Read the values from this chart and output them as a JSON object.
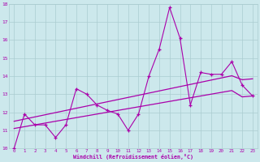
{
  "x": [
    0,
    1,
    2,
    3,
    4,
    5,
    6,
    7,
    8,
    9,
    10,
    11,
    12,
    13,
    14,
    15,
    16,
    17,
    18,
    19,
    20,
    21,
    22,
    23
  ],
  "y_main": [
    10.0,
    11.9,
    11.3,
    11.3,
    10.6,
    11.3,
    13.3,
    13.0,
    12.4,
    12.1,
    11.9,
    11.0,
    11.9,
    14.0,
    15.5,
    17.8,
    16.1,
    12.4,
    14.2,
    14.1,
    14.1,
    14.8,
    13.5,
    12.9
  ],
  "y_trend1": [
    11.5,
    11.62,
    11.74,
    11.86,
    11.98,
    12.1,
    12.22,
    12.34,
    12.46,
    12.58,
    12.7,
    12.82,
    12.94,
    13.06,
    13.18,
    13.3,
    13.42,
    13.54,
    13.66,
    13.78,
    13.9,
    14.02,
    13.8,
    13.85
  ],
  "y_trend2": [
    11.1,
    11.2,
    11.3,
    11.4,
    11.5,
    11.6,
    11.7,
    11.8,
    11.9,
    12.0,
    12.1,
    12.2,
    12.3,
    12.4,
    12.5,
    12.6,
    12.7,
    12.8,
    12.9,
    13.0,
    13.1,
    13.2,
    12.85,
    12.9
  ],
  "line_color": "#aa00aa",
  "bg_color": "#cce8ec",
  "grid_color": "#aaccd0",
  "text_color": "#aa00aa",
  "xlabel": "Windchill (Refroidissement éolien,°C)",
  "ylim": [
    10,
    18
  ],
  "xlim": [
    -0.5,
    23.5
  ],
  "yticks": [
    10,
    11,
    12,
    13,
    14,
    15,
    16,
    17,
    18
  ],
  "xticks": [
    0,
    1,
    2,
    3,
    4,
    5,
    6,
    7,
    8,
    9,
    10,
    11,
    12,
    13,
    14,
    15,
    16,
    17,
    18,
    19,
    20,
    21,
    22,
    23
  ]
}
